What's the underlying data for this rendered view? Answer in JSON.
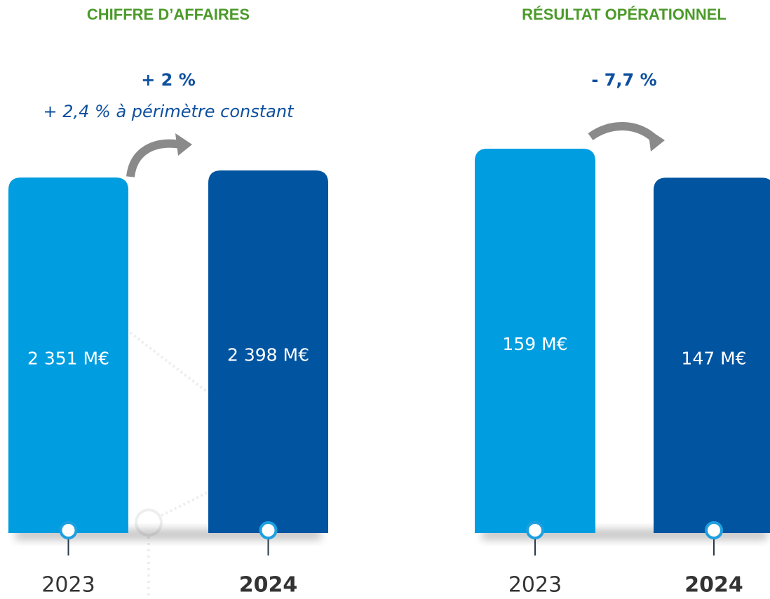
{
  "chart_data": [
    {
      "type": "bar",
      "title": "CHIFFRE D’AFFAIRES",
      "annotations": [
        "+ 2 %",
        "+ 2,4 % à périmètre constant"
      ],
      "categories": [
        "2023",
        "2024"
      ],
      "values": [
        2351,
        2398
      ],
      "value_labels": [
        "2 351 M€",
        "2 398 M€"
      ],
      "colors": [
        "#009de0",
        "#0054a0"
      ]
    },
    {
      "type": "bar",
      "title": "RÉSULTAT OPÉRATIONNEL",
      "annotations": [
        "- 7,7 %"
      ],
      "categories": [
        "2023",
        "2024"
      ],
      "values": [
        159,
        147
      ],
      "value_labels": [
        "159 M€",
        "147 M€"
      ],
      "colors": [
        "#009de0",
        "#0054a0"
      ]
    }
  ]
}
